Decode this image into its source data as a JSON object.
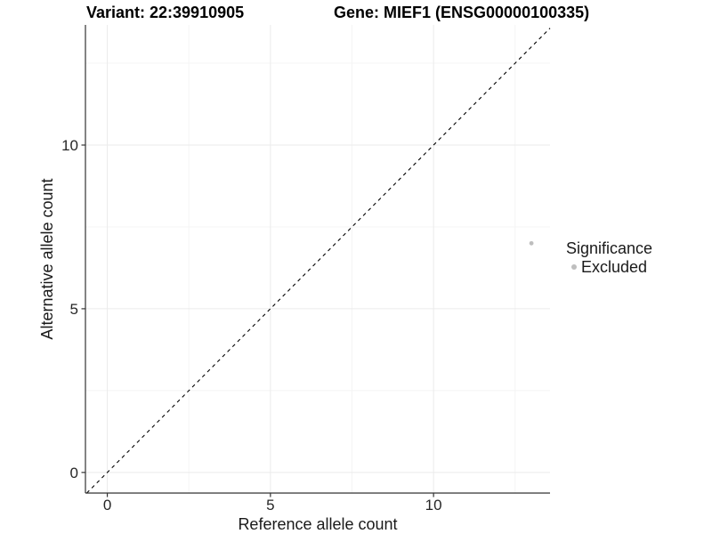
{
  "chart_data": {
    "type": "scatter",
    "title_left": "Variant: 22:39910905",
    "title_right": "Gene: MIEF1 (ENSG00000100335)",
    "xlabel": "Reference allele count",
    "ylabel": "Alternative allele count",
    "xlim": [
      -0.67,
      13.57
    ],
    "ylim": [
      -0.63,
      13.67
    ],
    "x_ticks": [
      0,
      5,
      10
    ],
    "y_ticks": [
      0,
      5,
      10
    ],
    "x_minor_gridlines": [
      2.5,
      7.5,
      12.5
    ],
    "y_minor_gridlines": [
      2.5,
      7.5,
      12.5
    ],
    "grid": true,
    "identity_line": {
      "slope": 1,
      "intercept": 0,
      "style": "dashed",
      "color": "#000000"
    },
    "series": [
      {
        "name": "Excluded",
        "color": "#bebebe",
        "points": [
          {
            "x": 13,
            "y": 7
          }
        ]
      }
    ],
    "legend": {
      "title": "Significance",
      "position": "right",
      "entries": [
        {
          "label": "Excluded",
          "color": "#bebebe"
        }
      ]
    },
    "colors": {
      "background": "#ffffff",
      "major_gridline": "#ebebeb",
      "minor_gridline": "#f4f4f4",
      "axis_line": "#333333",
      "tick_text": "#262626",
      "point": "#bebebe"
    }
  }
}
